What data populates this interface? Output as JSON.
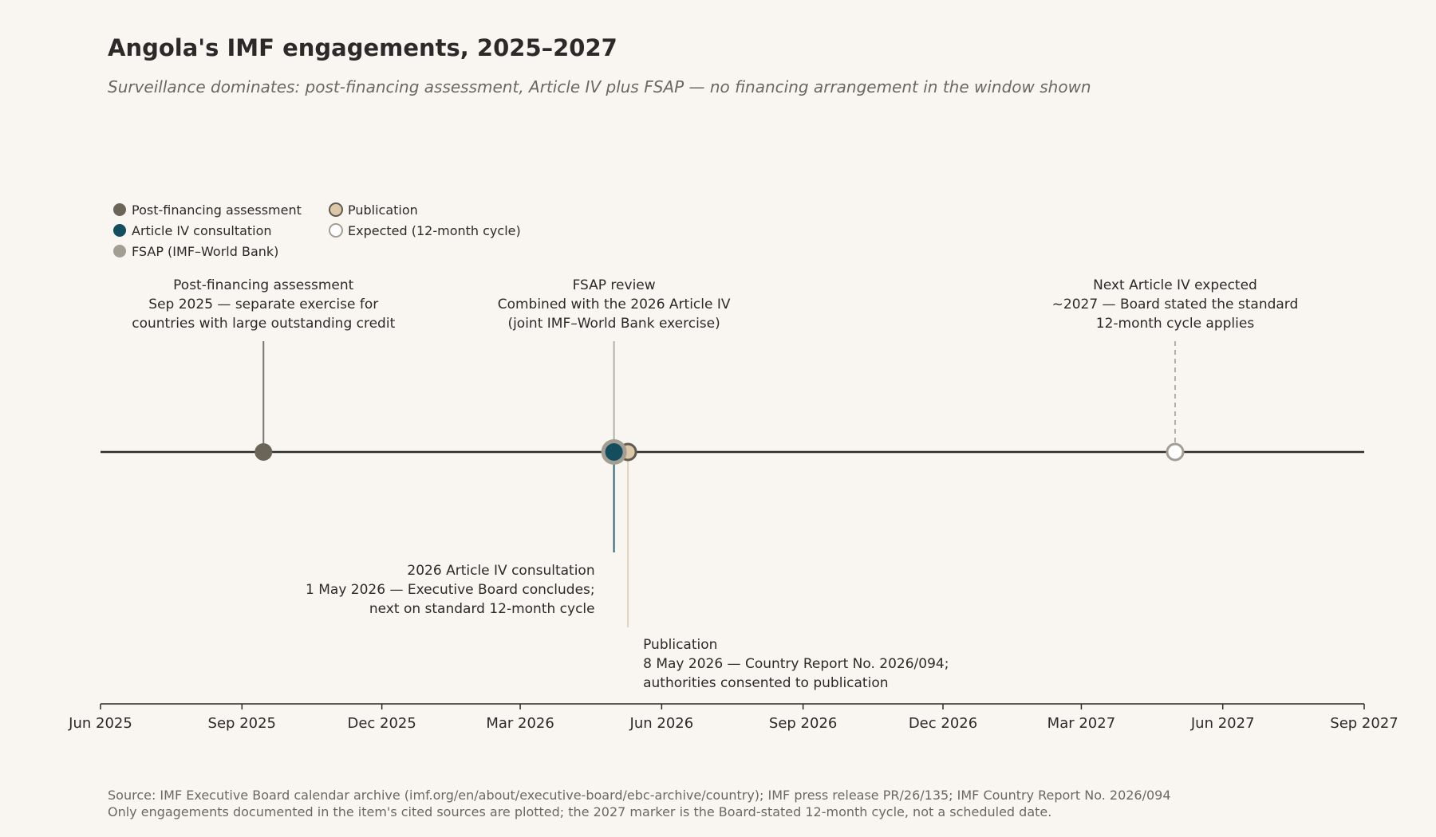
{
  "chart_data": {
    "type": "timeline",
    "title": "Angola's IMF engagements, 2025–2027",
    "subtitle": "Surveillance dominates: post-financing assessment, Article IV plus FSAP — no financing arrangement in the window shown",
    "xlim": [
      "2025-06-01",
      "2027-09-01"
    ],
    "x_ticks": [
      {
        "date": "2025-06-01",
        "label": "Jun 2025"
      },
      {
        "date": "2025-09-01",
        "label": "Sep 2025"
      },
      {
        "date": "2025-12-01",
        "label": "Dec 2025"
      },
      {
        "date": "2026-03-01",
        "label": "Mar 2026"
      },
      {
        "date": "2026-06-01",
        "label": "Jun 2026"
      },
      {
        "date": "2026-09-01",
        "label": "Sep 2026"
      },
      {
        "date": "2026-12-01",
        "label": "Dec 2026"
      },
      {
        "date": "2027-03-01",
        "label": "Mar 2027"
      },
      {
        "date": "2027-06-01",
        "label": "Jun 2027"
      },
      {
        "date": "2027-09-01",
        "label": "Sep 2027"
      }
    ],
    "legend": {
      "placement": "top-left",
      "entries": [
        {
          "key": "pfa",
          "label": "Post-financing assessment",
          "fill": "#6b6559",
          "stroke": "#6b6559",
          "hollow": false
        },
        {
          "key": "art4",
          "label": "Article IV consultation",
          "fill": "#144e5e",
          "stroke": "#144e5e",
          "hollow": false
        },
        {
          "key": "fsap",
          "label": "FSAP (IMF–World Bank)",
          "fill": "#a39e93",
          "stroke": "#a39e93",
          "hollow": false
        },
        {
          "key": "pub",
          "label": "Publication",
          "fill": "#dcc8a8",
          "stroke": "#5f5a50",
          "hollow": false
        },
        {
          "key": "exp",
          "label": "Expected (12-month cycle)",
          "fill": "#ffffff",
          "stroke": "#a39e93",
          "hollow": true
        }
      ]
    },
    "events": [
      {
        "key": "pfa",
        "date": "2025-09-15",
        "position": "above",
        "lines": [
          "Post-financing assessment",
          "Sep 2025 — separate exercise for",
          "countries with large outstanding credit"
        ]
      },
      {
        "key": "fsap",
        "date": "2026-05-01",
        "position": "above",
        "lines": [
          "FSAP review",
          "Combined with the 2026 Article IV",
          "(joint IMF–World Bank exercise)"
        ]
      },
      {
        "key": "pub",
        "date": "2026-05-08",
        "position": "below-far",
        "lines": [
          "Publication",
          "8 May 2026 — Country Report No. 2026/094;",
          "authorities consented to publication"
        ]
      },
      {
        "key": "art4",
        "date": "2026-05-01",
        "position": "below",
        "lines": [
          "2026 Article IV consultation",
          "1 May 2026 — Executive Board concludes;",
          "next on standard 12-month cycle"
        ]
      },
      {
        "key": "exp",
        "date": "2027-05-01",
        "position": "above",
        "lines": [
          "Next Article IV expected",
          "~2027 — Board stated the standard",
          "12-month cycle applies"
        ]
      }
    ],
    "source_lines": [
      "Source: IMF Executive Board calendar archive (imf.org/en/about/executive-board/ebc-archive/country); IMF press release PR/26/135; IMF Country Report No. 2026/094",
      "Only engagements documented in the item's cited sources are plotted; the 2027 marker is the Board-stated 12-month cycle, not a scheduled date."
    ]
  }
}
